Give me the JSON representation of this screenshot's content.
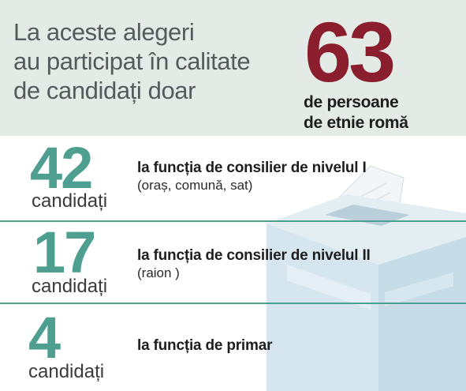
{
  "header": {
    "intro_lines": [
      "La aceste alegeri",
      "au participat în calitate",
      "de candidați doar"
    ],
    "total": "63",
    "total_label_lines": [
      "de persoane",
      "de etnie romă"
    ]
  },
  "rows": [
    {
      "count": "42",
      "unit": "candidați",
      "role": "la funcția de consilier de nivelul I",
      "detail": "(oraș, comună, sat)"
    },
    {
      "count": "17",
      "unit": "candidați",
      "role": "la funcția de consilier de nivelul II",
      "detail": "(raion )"
    },
    {
      "count": "4",
      "unit": "candidați",
      "role": "la funcția de primar",
      "detail": ""
    }
  ],
  "colors": {
    "header_bg": "#e4ebe6",
    "accent_total": "#8b1e2d",
    "accent_counts": "#4e9f8f",
    "ballot_box": "#cfe1ea"
  },
  "icons": [
    "ballot-box-icon"
  ]
}
